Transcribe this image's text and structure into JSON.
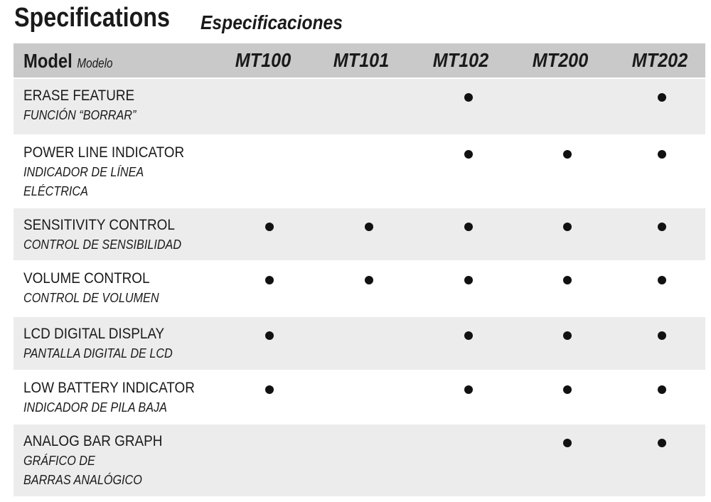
{
  "title": {
    "en": "Specifications",
    "es": "Especificaciones"
  },
  "header": {
    "model": "Model",
    "model_es": "Modelo",
    "models": [
      "MT100",
      "MT101",
      "MT102",
      "MT200",
      "MT202"
    ]
  },
  "rows": [
    {
      "en": "ERASE FEATURE",
      "es": "FUNCIÓN “BORRAR”",
      "has": [
        false,
        false,
        true,
        false,
        true
      ]
    },
    {
      "en": "POWER LINE INDICATOR",
      "es": "INDICADOR DE LÍNEA ELÉCTRICA",
      "has": [
        false,
        false,
        true,
        true,
        true
      ]
    },
    {
      "en": "SENSITIVITY CONTROL",
      "es": "CONTROL DE SENSIBILIDAD",
      "has": [
        true,
        true,
        true,
        true,
        true
      ]
    },
    {
      "en": "VOLUME CONTROL",
      "es": "CONTROL DE VOLUMEN",
      "has": [
        true,
        true,
        true,
        true,
        true
      ]
    },
    {
      "en": "LCD DIGITAL DISPLAY",
      "es": "PANTALLA DIGITAL DE LCD",
      "has": [
        true,
        false,
        true,
        true,
        true
      ]
    },
    {
      "en": "LOW BATTERY INDICATOR",
      "es": "INDICADOR DE PILA BAJA",
      "has": [
        true,
        false,
        true,
        true,
        true
      ]
    },
    {
      "en": "ANALOG BAR GRAPH",
      "es": "GRÁFICO DE BARRAS ANALÓGICO",
      "has": [
        false,
        false,
        false,
        true,
        true
      ]
    }
  ]
}
